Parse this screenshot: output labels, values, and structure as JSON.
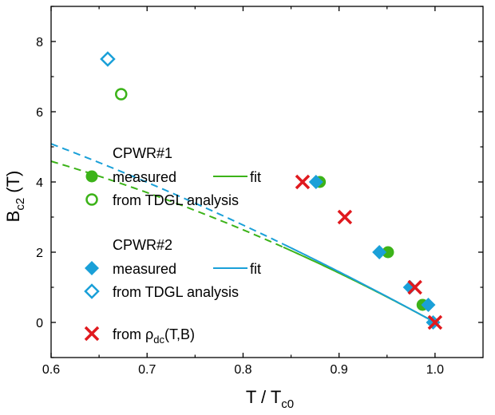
{
  "chart_data": {
    "type": "scatter",
    "xlabel": {
      "main": "T / T",
      "sub": "c0"
    },
    "ylabel": {
      "main": "B",
      "sub": "c2",
      "tail": " (T)"
    },
    "xlim": [
      0.6,
      1.05
    ],
    "ylim": [
      -1,
      9
    ],
    "xticks": [
      0.6,
      0.7,
      0.8,
      0.9,
      1.0
    ],
    "xtick_labels": [
      "0.6",
      "0.7",
      "0.8",
      "0.9",
      "1.0"
    ],
    "yticks": [
      0,
      2,
      4,
      6,
      8
    ],
    "ytick_labels": [
      "0",
      "2",
      "4",
      "6",
      "8"
    ],
    "series": [
      {
        "name": "CPWR#1 measured",
        "sample": "CPWR#1",
        "marker": "filled-circle",
        "color": "#3cb319",
        "x": [
          0.88,
          0.951,
          0.987
        ],
        "y": [
          4.0,
          2.0,
          0.5
        ]
      },
      {
        "name": "CPWR#1 from TDGL analysis",
        "sample": "CPWR#1",
        "marker": "open-circle",
        "color": "#3cb319",
        "x": [
          0.673
        ],
        "y": [
          6.5
        ]
      },
      {
        "name": "CPWR#2 measured",
        "sample": "CPWR#2",
        "marker": "filled-diamond",
        "color": "#1aa0d8",
        "x": [
          0.876,
          0.942,
          0.974,
          0.993,
          0.998
        ],
        "y": [
          4.0,
          2.0,
          1.0,
          0.5,
          0.0
        ]
      },
      {
        "name": "CPWR#2 from TDGL analysis",
        "sample": "CPWR#2",
        "marker": "open-diamond",
        "color": "#1aa0d8",
        "x": [
          0.659
        ],
        "y": [
          7.5
        ]
      },
      {
        "name": "from ρdc(T,B)",
        "marker": "cross",
        "color": "#e0191e",
        "x": [
          0.862,
          0.906,
          0.979,
          1.0
        ],
        "y": [
          4.0,
          3.0,
          1.0,
          0.0
        ]
      }
    ],
    "fits": [
      {
        "name": "CPWR#1 fit",
        "color": "#3cb319",
        "bc2_0": 6.8,
        "exponent": 2.2,
        "solid_from_x": 0.842
      },
      {
        "name": "CPWR#2 fit",
        "color": "#1aa0d8",
        "bc2_0": 8.7,
        "exponent": 1.72,
        "solid_from_x": 0.842
      }
    ],
    "legend": {
      "position": "center-left",
      "group1_title": "CPWR#1",
      "group2_title": "CPWR#2",
      "measured": "measured",
      "fit": "fit",
      "tdgl": "from TDGL analysis",
      "rho_prefix": "from ",
      "rho_symbol": "ρ",
      "rho_sub": "dc",
      "rho_suffix": "(T,B)"
    }
  }
}
